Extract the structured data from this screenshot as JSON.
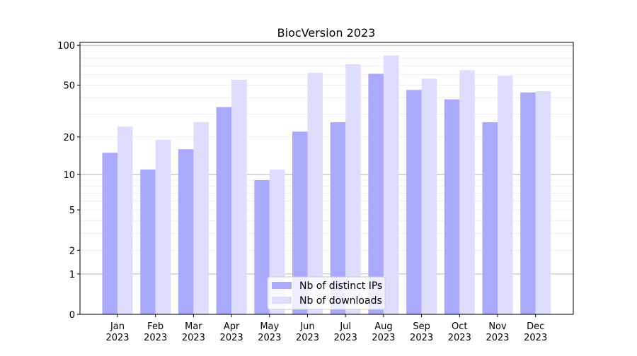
{
  "chart_data": {
    "type": "bar",
    "title": "BiocVersion 2023",
    "xlabel": "",
    "ylabel": "",
    "yscale": "log(1+x)",
    "ylim": [
      0,
      105
    ],
    "grid": true,
    "legend_position": "bottom-center",
    "y_ticks": [
      0,
      1,
      2,
      5,
      10,
      20,
      50,
      100
    ],
    "categories": [
      "Jan\n2023",
      "Feb\n2023",
      "Mar\n2023",
      "Apr\n2023",
      "May\n2023",
      "Jun\n2023",
      "Jul\n2023",
      "Aug\n2023",
      "Sep\n2023",
      "Oct\n2023",
      "Nov\n2023",
      "Dec\n2023"
    ],
    "series": [
      {
        "name": "Nb of distinct IPs",
        "color": "#aaaafc",
        "values": [
          15,
          11,
          16,
          34,
          9,
          22,
          26,
          61,
          46,
          39,
          26,
          44
        ]
      },
      {
        "name": "Nb of downloads",
        "color": "#ddddfd",
        "values": [
          24,
          19,
          26,
          55,
          11,
          62,
          72,
          84,
          56,
          65,
          59,
          45
        ]
      }
    ]
  }
}
